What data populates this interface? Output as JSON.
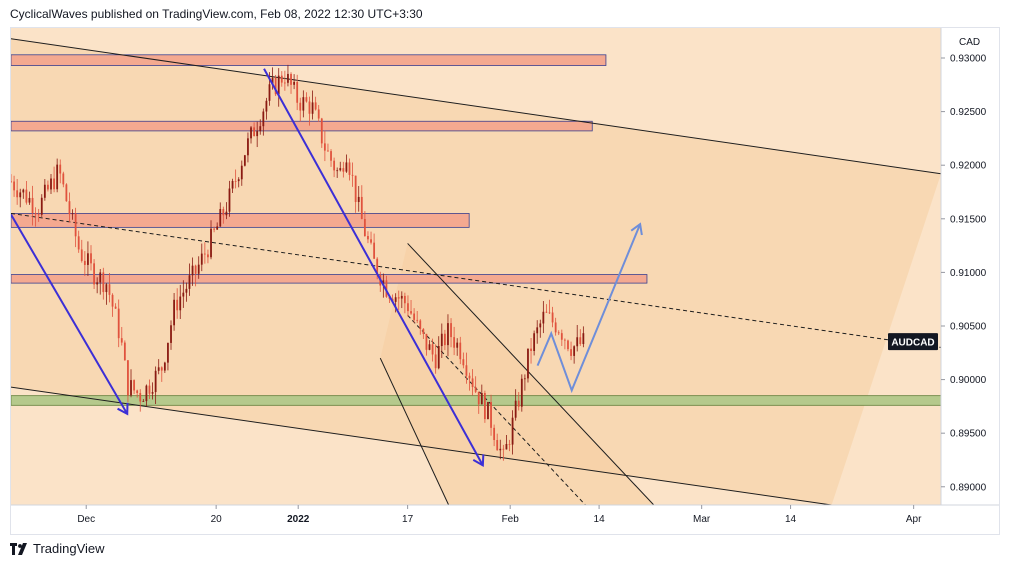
{
  "header": {
    "publisher_line": "CyclicalWaves published on TradingView.com, Feb 08, 2022 12:30 UTC+3:30"
  },
  "footer": {
    "brand": "TradingView",
    "logo_icon": "tradingview-logo-icon"
  },
  "colors": {
    "background": "#fbe3c8",
    "band_fill": "#f6cfa2",
    "resistance_fill": "#f4a990",
    "resistance_stroke": "#3a3f8f",
    "support_fill": "#b5c98c",
    "support_stroke": "#5f7f3a",
    "candle_up": "#8a1a12",
    "candle_down": "#e0523d",
    "arrow_purple": "#3c2fd6",
    "arrow_blue": "#6f8ed9",
    "line": "#1e1e1e",
    "price_label_bg": "#131722",
    "price_label_text": "#ffffff"
  },
  "chart_data": {
    "type": "candlestick",
    "symbol": "AUDCAD",
    "currency": "CAD",
    "last_price_label": "AUDCAD",
    "y_axis": {
      "range": [
        0.8883,
        0.9328
      ],
      "ticks": [
        "0.93000",
        "0.92500",
        "0.92000",
        "0.91500",
        "0.91000",
        "0.90500",
        "0.90000",
        "0.89500",
        "0.89000"
      ],
      "tick_values": [
        0.93,
        0.925,
        0.92,
        0.915,
        0.91,
        0.905,
        0.9,
        0.895,
        0.89
      ]
    },
    "x_axis": {
      "range": [
        "2021-11-20",
        "2022-04-05"
      ],
      "ticks": [
        {
          "label": "Dec",
          "date": "2021-12-01"
        },
        {
          "label": "20",
          "date": "2021-12-20"
        },
        {
          "label": "2022",
          "date": "2022-01-01"
        },
        {
          "label": "17",
          "date": "2022-01-17"
        },
        {
          "label": "Feb",
          "date": "2022-02-01"
        },
        {
          "label": "14",
          "date": "2022-02-14"
        },
        {
          "label": "Mar",
          "date": "2022-03-01"
        },
        {
          "label": "14",
          "date": "2022-03-14"
        },
        {
          "label": "Apr",
          "date": "2022-04-01"
        }
      ]
    },
    "price_path": [
      [
        "2021-11-20",
        0.9185
      ],
      [
        "2021-11-24",
        0.916
      ],
      [
        "2021-11-27",
        0.9195
      ],
      [
        "2021-11-30",
        0.912
      ],
      [
        "2021-12-02",
        0.91
      ],
      [
        "2021-12-04",
        0.909
      ],
      [
        "2021-12-06",
        0.904
      ],
      [
        "2021-12-07",
        0.8995
      ],
      [
        "2021-12-09",
        0.8985
      ],
      [
        "2021-12-12",
        0.901
      ],
      [
        "2021-12-14",
        0.907
      ],
      [
        "2021-12-17",
        0.91
      ],
      [
        "2021-12-20",
        0.914
      ],
      [
        "2021-12-22",
        0.917
      ],
      [
        "2021-12-24",
        0.921
      ],
      [
        "2021-12-26",
        0.924
      ],
      [
        "2021-12-28",
        0.927
      ],
      [
        "2021-12-30",
        0.9285
      ],
      [
        "2022-01-01",
        0.926
      ],
      [
        "2022-01-03",
        0.9255
      ],
      [
        "2022-01-05",
        0.9215
      ],
      [
        "2022-01-07",
        0.919
      ],
      [
        "2022-01-08",
        0.9215
      ],
      [
        "2022-01-10",
        0.9155
      ],
      [
        "2022-01-12",
        0.911
      ],
      [
        "2022-01-14",
        0.9085
      ],
      [
        "2022-01-17",
        0.907
      ],
      [
        "2022-01-19",
        0.904
      ],
      [
        "2022-01-21",
        0.902
      ],
      [
        "2022-01-23",
        0.9045
      ],
      [
        "2022-01-25",
        0.9025
      ],
      [
        "2022-01-27",
        0.899
      ],
      [
        "2022-01-29",
        0.8965
      ],
      [
        "2022-01-31",
        0.8925
      ],
      [
        "2022-02-02",
        0.8975
      ],
      [
        "2022-02-04",
        0.903
      ],
      [
        "2022-02-06",
        0.906
      ],
      [
        "2022-02-08",
        0.905
      ],
      [
        "2022-02-10",
        0.903
      ],
      [
        "2022-02-12",
        0.9035
      ]
    ],
    "resistance_zones": [
      {
        "from": "2021-11-20",
        "to": "2022-02-15",
        "low": 0.9293,
        "high": 0.9303
      },
      {
        "from": "2021-11-20",
        "to": "2022-02-13",
        "low": 0.9232,
        "high": 0.9241
      },
      {
        "from": "2021-11-20",
        "to": "2022-01-26",
        "low": 0.9142,
        "high": 0.9155
      },
      {
        "from": "2021-11-20",
        "to": "2022-02-21",
        "low": 0.909,
        "high": 0.9098
      }
    ],
    "support_zone": {
      "from": "2021-11-20",
      "to": "2022-04-05",
      "low": 0.8976,
      "high": 0.8985
    },
    "lines": [
      {
        "style": "solid",
        "from": [
          "2021-11-20",
          0.9318
        ],
        "to": [
          "2022-04-05",
          0.9192
        ]
      },
      {
        "style": "solid",
        "from": [
          "2021-11-20",
          0.8993
        ],
        "to": [
          "2022-03-20",
          0.8883
        ]
      },
      {
        "style": "dashed",
        "from": [
          "2021-11-20",
          0.9155
        ],
        "to": [
          "2022-04-05",
          0.903
        ]
      },
      {
        "style": "solid",
        "from": [
          "2022-01-17",
          0.9127
        ],
        "to": [
          "2022-02-22",
          0.8883
        ]
      },
      {
        "style": "solid",
        "from": [
          "2022-01-13",
          0.902
        ],
        "to": [
          "2022-01-23",
          0.8883
        ]
      },
      {
        "style": "dashed",
        "from": [
          "2022-01-17",
          0.906
        ],
        "to": [
          "2022-02-12",
          0.8883
        ]
      }
    ],
    "arrows": [
      {
        "color": "purple",
        "from": [
          "2021-11-20",
          0.9154
        ],
        "to": [
          "2021-12-07",
          0.8968
        ]
      },
      {
        "color": "purple",
        "from": [
          "2021-12-27",
          0.929
        ],
        "to": [
          "2022-01-28",
          0.892
        ]
      },
      {
        "color": "blue",
        "points": [
          [
            "2022-02-05",
            0.9013
          ],
          [
            "2022-02-07",
            0.9043
          ],
          [
            "2022-02-10",
            0.899
          ],
          [
            "2022-02-20",
            0.9145
          ]
        ]
      }
    ]
  }
}
